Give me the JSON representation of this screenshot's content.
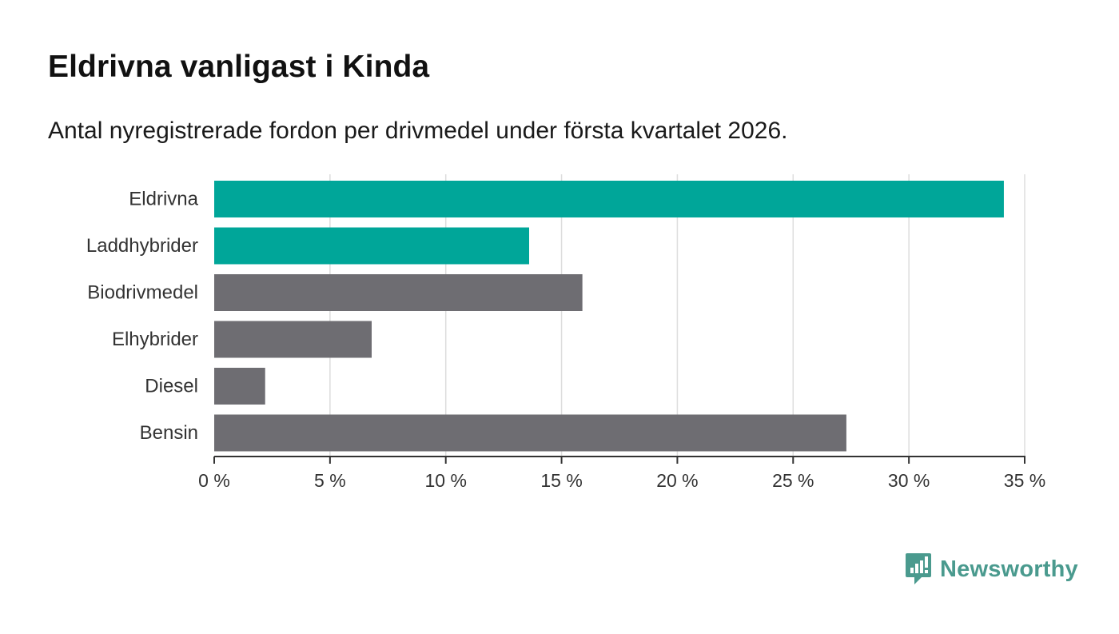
{
  "title": "Eldrivna vanligast i Kinda",
  "subtitle": "Antal nyregistrerade fordon per drivmedel under första kvartalet 2026.",
  "brand": {
    "name": "Newsworthy",
    "icon": "newsworthy-logo-icon"
  },
  "colors": {
    "highlight": "#00a699",
    "default": "#6e6d72",
    "grid": "#dddddd",
    "axis": "#333333",
    "brand": "#4a9a8e"
  },
  "chart_data": {
    "type": "bar",
    "orientation": "horizontal",
    "title": "Eldrivna vanligast i Kinda",
    "subtitle": "Antal nyregistrerade fordon per drivmedel under första kvartalet 2026.",
    "xlabel": "",
    "ylabel": "",
    "xlim": [
      0,
      35
    ],
    "categories": [
      "Eldrivna",
      "Laddhybrider",
      "Biodrivmedel",
      "Elhybrider",
      "Diesel",
      "Bensin"
    ],
    "values": [
      34.1,
      13.6,
      15.9,
      6.8,
      2.2,
      27.3
    ],
    "highlighted": [
      true,
      true,
      false,
      false,
      false,
      false
    ],
    "ticks": [
      0,
      5,
      10,
      15,
      20,
      25,
      30,
      35
    ],
    "tick_labels": [
      "0 %",
      "5 %",
      "10 %",
      "15 %",
      "20 %",
      "25 %",
      "30 %",
      "35 %"
    ],
    "grid": true
  }
}
